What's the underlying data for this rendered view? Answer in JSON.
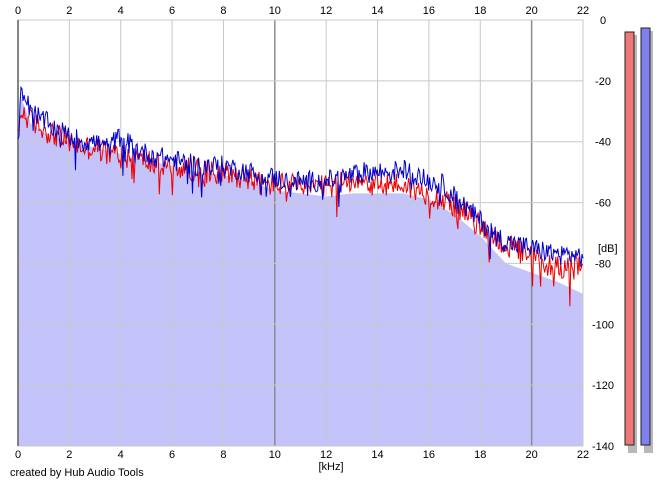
{
  "footer": {
    "credit": "created by Hub Audio Tools"
  },
  "chart_data": {
    "type": "line",
    "xlabel": "[kHz]",
    "ylabel": "[dB]",
    "xlim": [
      0,
      22
    ],
    "ylim": [
      -140,
      0
    ],
    "x_ticks": [
      0,
      2,
      4,
      6,
      8,
      10,
      12,
      14,
      16,
      18,
      20,
      22
    ],
    "x_tick_labels": [
      "0",
      "2",
      "4",
      "6",
      "8",
      "10",
      "12",
      "14",
      "16",
      "18",
      "20",
      "22"
    ],
    "y_ticks": [
      0,
      -20,
      -40,
      -60,
      -80,
      -100,
      -120,
      -140
    ],
    "y_tick_labels": [
      "0",
      "-20",
      "-40",
      "-60",
      "-80",
      "-100",
      "-120",
      "-140"
    ],
    "grid": true,
    "colors": {
      "fill": "#c4c4fb",
      "red": "#ee0000",
      "blue": "#0000cc",
      "grid": "#c8c8c8",
      "major_grid": "#8c8c8c"
    },
    "series": [
      {
        "color": "#ee0000",
        "x": [
          0,
          0.1,
          0.5,
          1,
          1.5,
          2,
          2.5,
          3,
          3.5,
          4,
          4.5,
          5,
          5.5,
          6,
          6.5,
          7,
          7.5,
          8,
          8.5,
          9,
          9.5,
          10,
          10.5,
          11,
          11.5,
          12,
          12.5,
          13,
          13.5,
          14,
          14.5,
          15,
          15.5,
          16,
          16.5,
          17,
          17.5,
          18,
          18.5,
          19,
          19.5,
          20,
          20.5,
          21,
          21.5,
          22
        ],
        "values": [
          -40,
          -30,
          -33,
          -36,
          -38,
          -40,
          -42,
          -42,
          -44,
          -44,
          -45,
          -46,
          -48,
          -48,
          -49,
          -49,
          -50,
          -50,
          -51,
          -52,
          -54,
          -54,
          -54,
          -55,
          -55,
          -55,
          -54,
          -52,
          -53,
          -54,
          -54,
          -54,
          -56,
          -57,
          -59,
          -61,
          -64,
          -68,
          -71,
          -74,
          -76,
          -78,
          -80,
          -81,
          -81,
          -82
        ]
      },
      {
        "color": "#0000cc",
        "x": [
          0,
          0.1,
          0.5,
          1,
          1.5,
          2,
          2.5,
          3,
          3.5,
          4,
          4.5,
          5,
          5.5,
          6,
          6.5,
          7,
          7.5,
          8,
          8.5,
          9,
          9.5,
          10,
          10.5,
          11,
          11.5,
          12,
          12.5,
          13,
          13.5,
          14,
          14.5,
          15,
          15.5,
          16,
          16.5,
          17,
          17.5,
          18,
          18.5,
          19,
          19.5,
          20,
          20.5,
          21,
          21.5,
          22
        ],
        "values": [
          -38,
          -22,
          -30,
          -33,
          -36,
          -38,
          -40,
          -40,
          -42,
          -38,
          -42,
          -44,
          -45,
          -46,
          -47,
          -48,
          -48,
          -48,
          -49,
          -50,
          -51,
          -52,
          -53,
          -53,
          -53,
          -53,
          -52,
          -51,
          -50,
          -50,
          -50,
          -49,
          -51,
          -53,
          -54,
          -58,
          -62,
          -66,
          -70,
          -73,
          -74,
          -75,
          -76,
          -77,
          -77,
          -78
        ]
      }
    ],
    "area": {
      "x": [
        0,
        0.1,
        0.5,
        1,
        2,
        3,
        4,
        5,
        6,
        7,
        8,
        9,
        10,
        11,
        12,
        13,
        14,
        15,
        16,
        17,
        18,
        19,
        20,
        21,
        22
      ],
      "values": [
        -40,
        -25,
        -34,
        -37,
        -40,
        -42,
        -44,
        -46,
        -48,
        -50,
        -51,
        -53,
        -56,
        -57,
        -58,
        -57,
        -57,
        -57,
        -59,
        -64,
        -71,
        -80,
        -83,
        -86,
        -90
      ]
    },
    "meters": [
      {
        "color": "#ee7777",
        "value": -140
      },
      {
        "color": "#8080ee",
        "value": -140
      }
    ]
  }
}
